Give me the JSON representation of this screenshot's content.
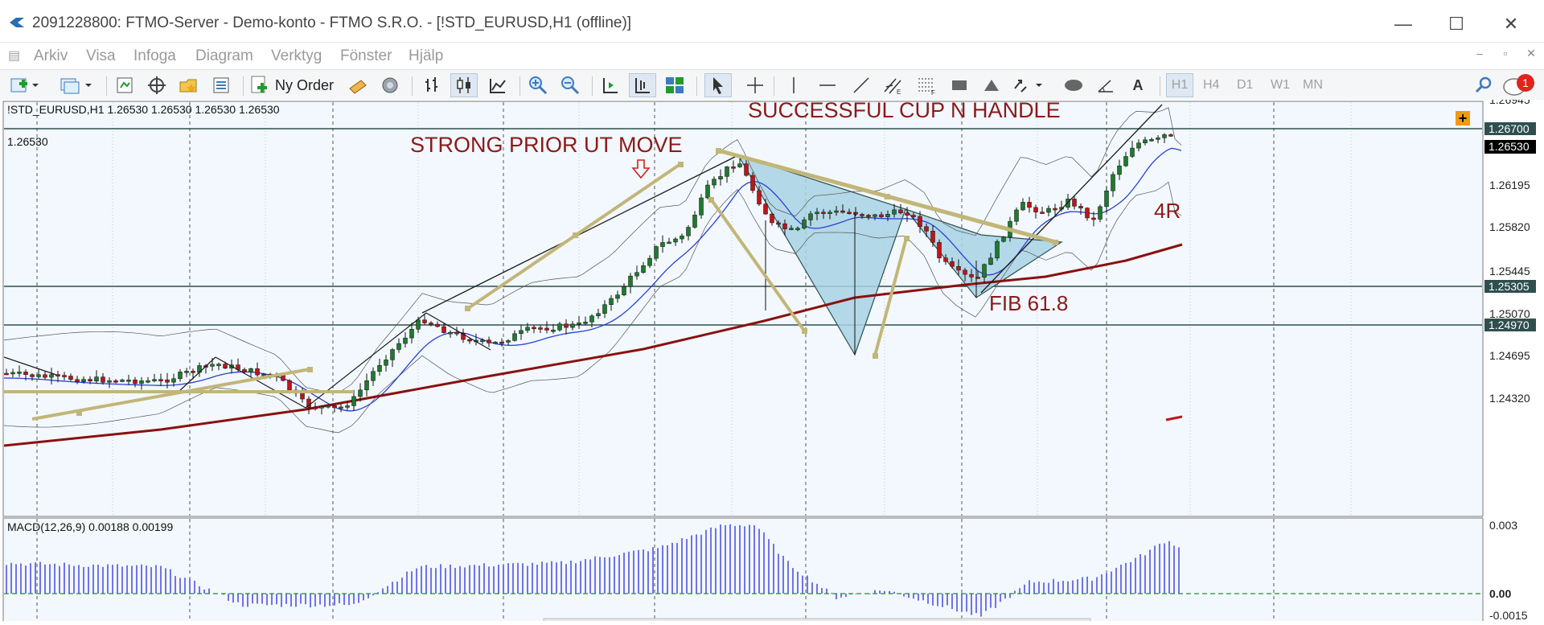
{
  "window": {
    "title": "2091228800: FTMO-Server - Demo-konto - FTMO S.R.O. - [!STD_EURUSD,H1 (offline)]",
    "minimize": "—",
    "maximize": "☐",
    "close": "✕"
  },
  "menu": [
    "Arkiv",
    "Visa",
    "Infoga",
    "Diagram",
    "Verktyg",
    "Fönster",
    "Hjälp"
  ],
  "toolbar": {
    "new_order_label": "Ny Order",
    "text_tool": "A",
    "timeframes": [
      "H1",
      "H4",
      "D1",
      "W1",
      "MN"
    ],
    "active_timeframe": "H1",
    "notification_count": "1"
  },
  "chart": {
    "header": "!STD_EURUSD,H1  1.26530 1.26530 1.26530 1.26530",
    "left_price_label": "1.26530",
    "annotations": {
      "cup": "SUCCESSFUL CUP N HANDLE",
      "prior": "STRONG PRIOR UT MOVE",
      "fib": "FIB 61.8",
      "r": "4R"
    },
    "price_axis": [
      "1.26945",
      "1.26195",
      "1.25820",
      "1.25445",
      "1.25070",
      "1.24695",
      "1.24320"
    ],
    "price_tags": {
      "hline_top": "1.26700",
      "bid": "1.26530",
      "hline_mid": "1.25305",
      "hline_low": "1.24970"
    },
    "plus_button": "+"
  },
  "macd": {
    "header": "MACD(12,26,9) 0.00188 0.00199",
    "axis": [
      "0.003",
      "0.00",
      "-0.0015"
    ]
  },
  "colors": {
    "annotation": "#8b1a1a",
    "trendline": "#c2b678",
    "cup_fill": "#a8d2e3",
    "ma_slow": "#8b1010",
    "ma_fast": "#2a3fd6",
    "bull": "#1f7a2e",
    "bear": "#c0141c",
    "macd": "#3a3adb",
    "signal": "#2e8b2e"
  }
}
